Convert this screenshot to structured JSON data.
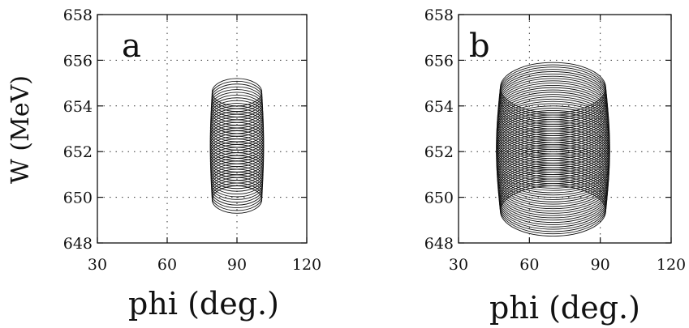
{
  "figure": {
    "ylabel": "W (MeV)"
  },
  "chart_data": [
    {
      "type": "contour",
      "panel_label": "a",
      "xlabel": "phi (deg.)",
      "ylabel": "W (MeV)",
      "xlim": [
        30,
        120
      ],
      "ylim": [
        648,
        658
      ],
      "xticks": [
        "30",
        "60",
        "90",
        "120"
      ],
      "yticks": [
        "648",
        "650",
        "652",
        "654",
        "656",
        "658"
      ],
      "grid": "dotted",
      "contours": {
        "shape": "stacked ellipses",
        "center_phi": 90,
        "phi_half_width": 11.5,
        "w_half_height": 0.6,
        "w_center_min": 649.9,
        "w_center_max": 654.6,
        "count": 40
      }
    },
    {
      "type": "contour",
      "panel_label": "b",
      "xlabel": "phi (deg.)",
      "ylabel": "",
      "xlim": [
        30,
        120
      ],
      "ylim": [
        648,
        658
      ],
      "xticks": [
        "30",
        "60",
        "90",
        "120"
      ],
      "yticks": [
        "648",
        "650",
        "652",
        "654",
        "656",
        "658"
      ],
      "grid": "dotted",
      "contours": {
        "shape": "stacked ellipses",
        "center_phi": 70,
        "phi_half_width": 24,
        "w_half_height": 1.1,
        "w_center_min": 649.4,
        "w_center_max": 654.8,
        "count": 55
      }
    }
  ]
}
